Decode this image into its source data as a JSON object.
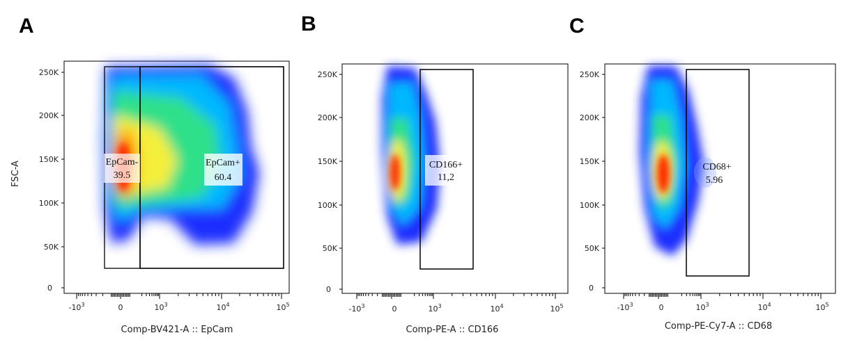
{
  "chart_data": [
    {
      "type": "scatter",
      "subtype": "flow-cytometry-density-plot",
      "panel": "A",
      "xlabel": "Comp-BV421-A :: EpCam",
      "ylabel": "FSC-A",
      "x_scale": "biexponential",
      "x_ticks": [
        "-10^3",
        "0",
        "10^3",
        "10^4",
        "10^5"
      ],
      "y_ticks": [
        "0",
        "50K",
        "100K",
        "150K",
        "200K",
        "250K"
      ],
      "ylim": [
        0,
        262144
      ],
      "gates": [
        {
          "name": "EpCam-",
          "value": "39.5",
          "x_range": [
            "-10^2.6",
            "10^2.7"
          ],
          "y_range": [
            25000,
            250000
          ]
        },
        {
          "name": "EpCam+",
          "value": "60.4",
          "x_range": [
            "10^2.7",
            "10^5"
          ],
          "y_range": [
            25000,
            250000
          ]
        }
      ]
    },
    {
      "type": "scatter",
      "subtype": "flow-cytometry-density-plot",
      "panel": "B",
      "xlabel": "Comp-PE-A :: CD166",
      "ylabel": "",
      "x_scale": "biexponential",
      "x_ticks": [
        "-10^3",
        "0",
        "10^3",
        "10^4",
        "10^5"
      ],
      "y_ticks": [
        "0",
        "50K",
        "100K",
        "150K",
        "200K",
        "250K"
      ],
      "ylim": [
        0,
        262144
      ],
      "gates": [
        {
          "name": "CD166+",
          "value": "11,2",
          "x_range": [
            "10^2.8",
            "10^3.7"
          ],
          "y_range": [
            25000,
            250000
          ]
        }
      ]
    },
    {
      "type": "scatter",
      "subtype": "flow-cytometry-density-plot",
      "panel": "C",
      "xlabel": "Comp-PE-Cy7-A :: CD68",
      "ylabel": "",
      "x_scale": "biexponential",
      "x_ticks": [
        "-10^3",
        "0",
        "10^3",
        "10^4",
        "10^5"
      ],
      "y_ticks": [
        "0",
        "50K",
        "100K",
        "150K",
        "200K",
        "250K"
      ],
      "ylim": [
        0,
        262144
      ],
      "gates": [
        {
          "name": "CD68+",
          "value": "5.96",
          "x_range": [
            "10^2.8",
            "10^3.8"
          ],
          "y_range": [
            15000,
            250000
          ]
        }
      ]
    }
  ],
  "panels": [
    {
      "letter": "A",
      "xlabel": "Comp-BV421-A :: EpCam",
      "ylabel": "FSC-A",
      "y_ticks": [
        "0",
        "50K",
        "100K",
        "150K",
        "200K",
        "250K"
      ],
      "gates": [
        {
          "name": "EpCam-",
          "value": "39.5"
        },
        {
          "name": "EpCam+",
          "value": "60.4"
        }
      ]
    },
    {
      "letter": "B",
      "xlabel": "Comp-PE-A :: CD166",
      "y_ticks": [
        "0",
        "50K",
        "100K",
        "150K",
        "200K",
        "250K"
      ],
      "gates": [
        {
          "name": "CD166+",
          "value": "11,2"
        }
      ]
    },
    {
      "letter": "C",
      "xlabel": "Comp-PE-Cy7-A :: CD68",
      "y_ticks": [
        "0",
        "50K",
        "100K",
        "150K",
        "200K",
        "250K"
      ],
      "gates": [
        {
          "name": "CD68+",
          "value": "5.96"
        }
      ]
    }
  ],
  "x_tick_labels": {
    "neg": "-10",
    "zero": "0",
    "base": "10",
    "exp_neg": "3",
    "exp_3": "3",
    "exp_4": "4",
    "exp_5": "5"
  },
  "colors": {
    "low": "#1a2fff",
    "mid_low": "#00c8ff",
    "mid": "#2fe08a",
    "mid_high": "#f4ef3a",
    "high": "#ff2a00"
  }
}
